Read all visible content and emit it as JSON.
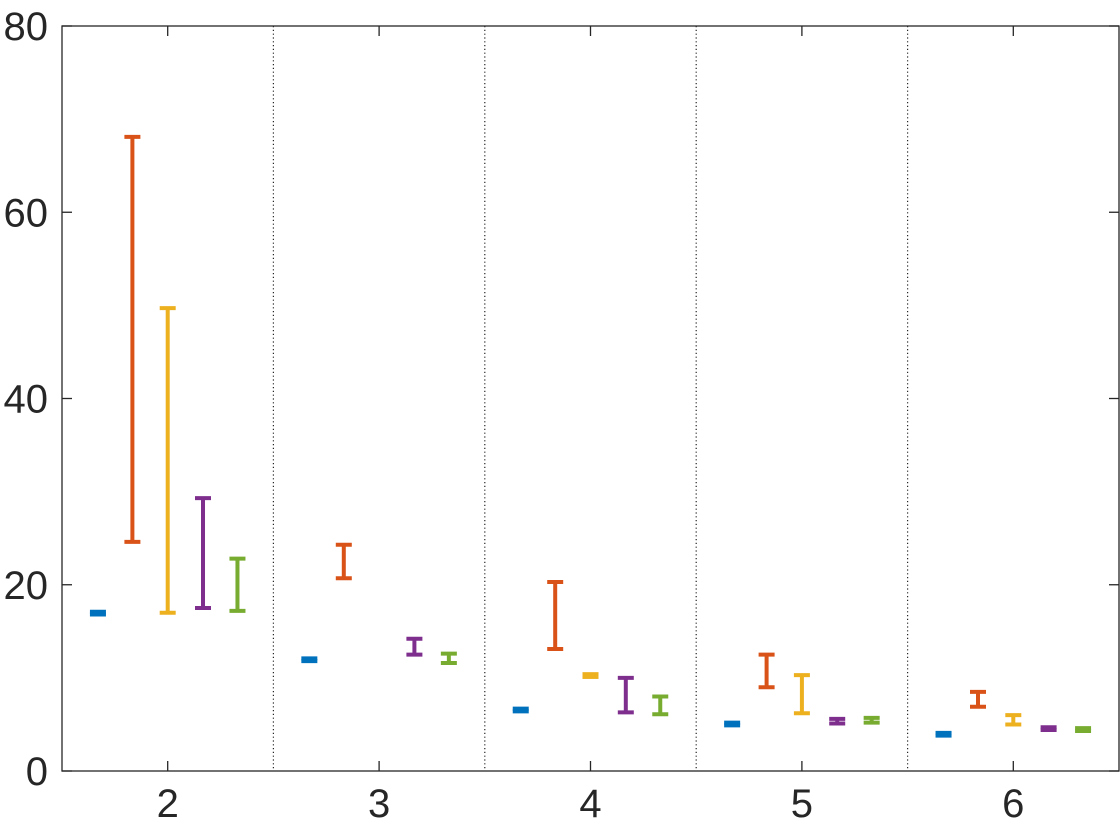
{
  "chart_data": {
    "type": "errorbar",
    "title": "",
    "xlabel": "",
    "ylabel": "",
    "xlim": [
      1.5,
      6.5
    ],
    "ylim": [
      0,
      80
    ],
    "x_ticks": [
      "2",
      "3",
      "4",
      "5",
      "6"
    ],
    "y_ticks": [
      "0",
      "20",
      "40",
      "60",
      "80"
    ],
    "grid": false,
    "group_separators": [
      2.5,
      3.5,
      4.5,
      5.5
    ],
    "group_offsets": [
      -0.33,
      -0.167,
      0,
      0.167,
      0.33
    ],
    "series": [
      {
        "color": "#0072BD",
        "ranges": [
          [
            16.8,
            17.1
          ],
          [
            11.8,
            12.1
          ],
          [
            6.4,
            6.7
          ],
          [
            4.9,
            5.2
          ],
          [
            3.8,
            4.1
          ]
        ]
      },
      {
        "color": "#D95319",
        "ranges": [
          [
            24.6,
            68.1
          ],
          [
            20.7,
            24.3
          ],
          [
            13.1,
            20.3
          ],
          [
            9.0,
            12.5
          ],
          [
            6.9,
            8.5
          ]
        ]
      },
      {
        "color": "#EDB120",
        "ranges": [
          [
            17.0,
            49.7
          ],
          null,
          [
            10.1,
            10.4
          ],
          [
            6.2,
            10.3
          ],
          [
            5.0,
            6.0
          ]
        ]
      },
      {
        "color": "#7E2F8E",
        "ranges": [
          [
            17.5,
            29.3
          ],
          [
            12.5,
            14.2
          ],
          [
            6.3,
            10.0
          ],
          [
            5.1,
            5.6
          ],
          [
            4.4,
            4.7
          ]
        ]
      },
      {
        "color": "#77AC30",
        "ranges": [
          [
            17.2,
            22.8
          ],
          [
            11.6,
            12.6
          ],
          [
            6.1,
            8.0
          ],
          [
            5.2,
            5.7
          ],
          [
            4.3,
            4.6
          ]
        ]
      }
    ]
  }
}
